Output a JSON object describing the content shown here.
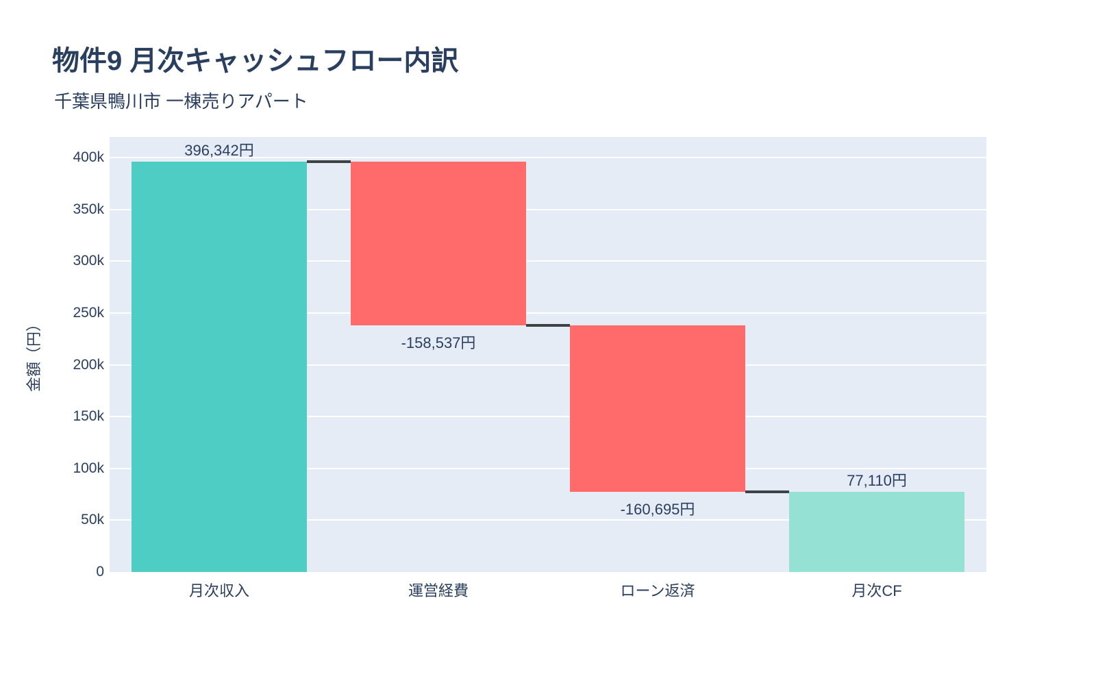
{
  "header": {
    "title": "物件9 月次キャッシュフロー内訳",
    "subtitle": "千葉県鴨川市 一棟売りアパート"
  },
  "colors": {
    "text": "#2a3f5f",
    "page_background": "#ffffff",
    "plot_background": "#e5ecf6",
    "gridline": "#ffffff",
    "increase_bar": "#4ecdc4",
    "decrease_bar": "#ff6b6b",
    "total_bar": "#95e1d3",
    "connector": "#3f4245"
  },
  "chart_data": {
    "type": "bar",
    "subtype": "waterfall",
    "title": "物件9 月次キャッシュフロー内訳",
    "subtitle": "千葉県鴨川市 一棟売りアパート",
    "xlabel": "",
    "ylabel": "金額（円）",
    "categories": [
      "月次収入",
      "運営経費",
      "ローン返済",
      "月次CF"
    ],
    "values": [
      396342,
      -158537,
      -160695,
      77110
    ],
    "measures": [
      "relative",
      "relative",
      "relative",
      "total"
    ],
    "bar_labels": [
      "396,342円",
      "-158,537円",
      "-160,695円",
      "77,110円"
    ],
    "running_totals": [
      396342,
      237805,
      77110,
      77110
    ],
    "ylim": [
      0,
      420000
    ],
    "yticks": [
      {
        "value": 0,
        "label": "0"
      },
      {
        "value": 50000,
        "label": "50k"
      },
      {
        "value": 100000,
        "label": "100k"
      },
      {
        "value": 150000,
        "label": "150k"
      },
      {
        "value": 200000,
        "label": "200k"
      },
      {
        "value": 250000,
        "label": "250k"
      },
      {
        "value": 300000,
        "label": "300k"
      },
      {
        "value": 350000,
        "label": "350k"
      },
      {
        "value": 400000,
        "label": "400k"
      }
    ],
    "grid": true,
    "legend": false,
    "connectors": true
  }
}
